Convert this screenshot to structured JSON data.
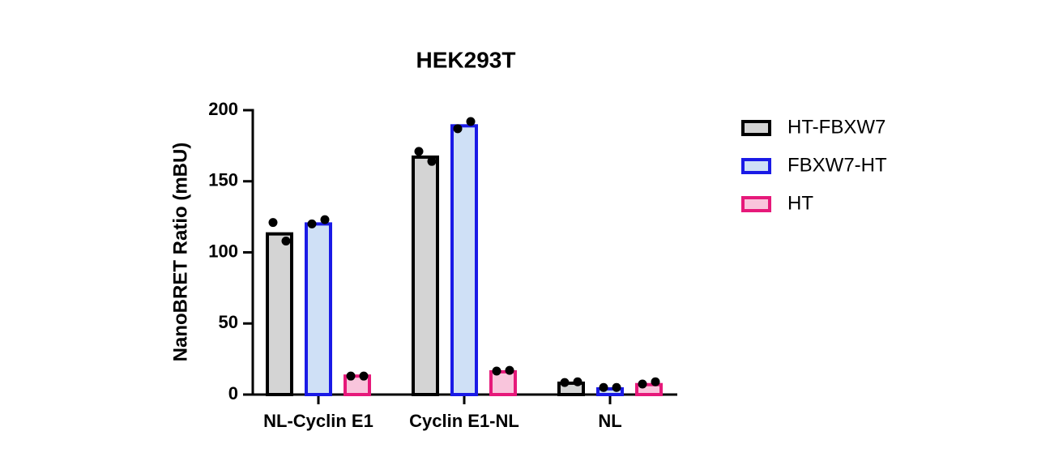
{
  "chart_data": {
    "type": "bar",
    "title": "HEK293T",
    "y_label": "NanoBRET Ratio (mBU)",
    "categories": [
      "NL-Cyclin E1",
      "Cyclin E1-NL",
      "NL"
    ],
    "ylim": [
      0,
      200
    ],
    "yticks": [
      0,
      50,
      100,
      150,
      200
    ],
    "legend": "right",
    "series": [
      {
        "name": "HT-FBXW7",
        "color": "#d4d4d4",
        "edge": "#000000",
        "values": [
          113,
          167,
          8
        ],
        "replicates": [
          [
            121,
            108
          ],
          [
            171,
            164
          ],
          [
            8.5,
            9
          ]
        ]
      },
      {
        "name": "FBXW7-HT",
        "color": "#cfe0f6",
        "edge": "#1a1ae6",
        "values": [
          120,
          189,
          4
        ],
        "replicates": [
          [
            120,
            123
          ],
          [
            187,
            192
          ],
          [
            5,
            5
          ]
        ]
      },
      {
        "name": "HT",
        "color": "#f9c5dc",
        "edge": "#e6197a",
        "values": [
          13,
          16,
          7
        ],
        "replicates": [
          [
            13,
            13
          ],
          [
            16.5,
            17
          ],
          [
            7.4,
            9
          ]
        ]
      }
    ]
  }
}
